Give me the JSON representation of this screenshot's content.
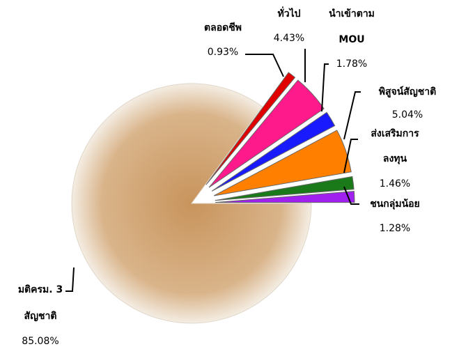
{
  "chart_data": {
    "type": "pie",
    "categories": [
      [
        "ตลอดชีพ"
      ],
      [
        "ทั่วไป"
      ],
      [
        "นำเข้าตาม",
        "MOU"
      ],
      [
        "พิสูจน์สัญชาติ"
      ],
      [
        "ส่งเสริมการ",
        "ลงทุน"
      ],
      [
        "ชนกลุ่มน้อย"
      ],
      [
        "มติครม. 3",
        "สัญชาติ"
      ]
    ],
    "values": [
      0.93,
      4.43,
      1.78,
      5.04,
      1.46,
      1.28,
      85.08
    ],
    "value_labels": [
      "0.93%",
      "4.43%",
      "1.78%",
      "5.04%",
      "1.46%",
      "1.28%",
      "85.08%"
    ],
    "colors": [
      "#e00000",
      "#ff1a8c",
      "#1a1aff",
      "#ff8000",
      "#1a7a1a",
      "#a020f0",
      "#d9b48a"
    ]
  }
}
